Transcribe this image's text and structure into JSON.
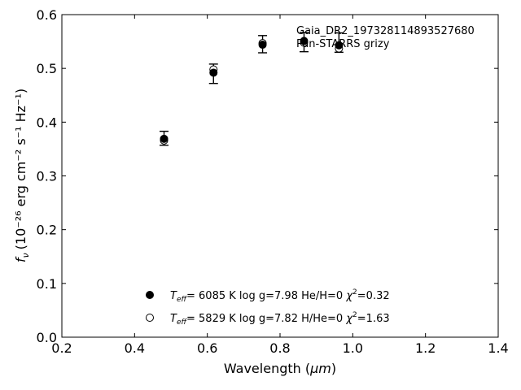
{
  "chart_data": {
    "type": "scatter",
    "title": "",
    "xlabel": "Wavelength (",
    "xlabel_unit": "μm",
    "ylabel_prefix": "f",
    "ylabel_sub": "ν",
    "ylabel_units": "(10⁻²⁶ erg cm⁻² s⁻¹ Hz⁻¹)",
    "xlim": [
      0.2,
      1.4
    ],
    "ylim": [
      0.0,
      0.6
    ],
    "xticks": [
      0.2,
      0.4,
      0.6,
      0.8,
      1.0,
      1.2,
      1.4
    ],
    "yticks": [
      0.0,
      0.1,
      0.2,
      0.3,
      0.4,
      0.5,
      0.6
    ],
    "xtick_labels": [
      "0.2",
      "0.4",
      "0.6",
      "0.8",
      "1.0",
      "1.2",
      "1.4"
    ],
    "ytick_labels": [
      "0.0",
      "0.1",
      "0.2",
      "0.3",
      "0.4",
      "0.5",
      "0.6"
    ],
    "grid": false,
    "annotation": {
      "line1": "Gaia_DR2_1973281148935276​80",
      "line2": "Pan-STARRS grizy"
    },
    "observed": {
      "x": [
        0.481,
        0.617,
        0.752,
        0.866,
        0.962
      ],
      "y": [
        0.37,
        0.49,
        0.545,
        0.549,
        0.548
      ],
      "yerr": [
        0.013,
        0.018,
        0.016,
        0.018,
        0.018
      ]
    },
    "series": [
      {
        "marker": "filled-circle",
        "teff": "6085 K",
        "logg": "log g=7.98",
        "comp": "He/H=0",
        "chi2": "=0.32",
        "x": [
          0.481,
          0.617,
          0.752,
          0.866,
          0.962
        ],
        "y": [
          0.369,
          0.492,
          0.544,
          0.551,
          0.543
        ]
      },
      {
        "marker": "open-circle",
        "teff": "5829 K",
        "logg": "log g=7.82",
        "comp": "H/He=0",
        "chi2": "=1.63",
        "x": [
          0.481,
          0.617,
          0.752,
          0.866,
          0.962
        ],
        "y": [
          0.366,
          0.498,
          0.547,
          0.548,
          0.537
        ]
      }
    ],
    "legend_location": "lower-center"
  }
}
